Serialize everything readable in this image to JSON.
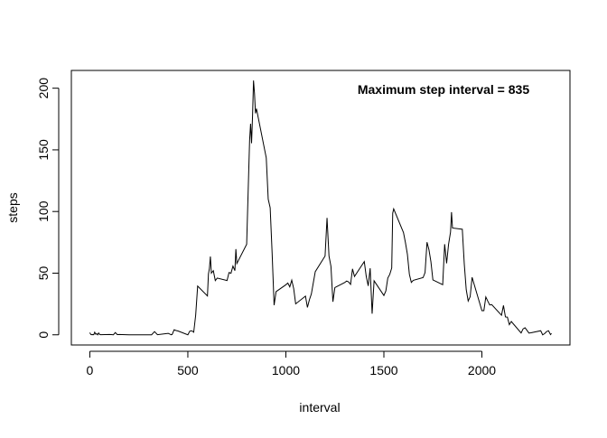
{
  "chart_data": {
    "type": "line",
    "x_label": "interval",
    "y_label": "steps",
    "annotation": "Maximum step interval =  835",
    "annotation_color": "#0000ff",
    "xlim": [
      -94.2,
      2449.2
    ],
    "ylim": [
      -8.25,
      214.4
    ],
    "xticks": [
      0,
      500,
      1000,
      1500,
      2000
    ],
    "yticks": [
      0,
      50,
      100,
      150,
      200
    ],
    "color": "#000000",
    "x": [
      0,
      5,
      10,
      15,
      20,
      25,
      30,
      35,
      40,
      45,
      50,
      55,
      100,
      110,
      120,
      130,
      140,
      150,
      200,
      215,
      230,
      245,
      300,
      315,
      330,
      345,
      400,
      415,
      420,
      430,
      440,
      450,
      500,
      510,
      520,
      530,
      540,
      550,
      600,
      605,
      610,
      615,
      620,
      630,
      640,
      650,
      700,
      710,
      720,
      730,
      740,
      745,
      750,
      800,
      810,
      815,
      820,
      825,
      830,
      835,
      840,
      845,
      850,
      900,
      910,
      920,
      930,
      935,
      940,
      950,
      1000,
      1010,
      1020,
      1030,
      1040,
      1050,
      1100,
      1110,
      1120,
      1130,
      1140,
      1150,
      1200,
      1210,
      1220,
      1230,
      1240,
      1250,
      1300,
      1310,
      1320,
      1330,
      1340,
      1350,
      1400,
      1410,
      1420,
      1430,
      1440,
      1450,
      1500,
      1510,
      1520,
      1530,
      1540,
      1545,
      1550,
      1600,
      1610,
      1620,
      1630,
      1640,
      1650,
      1700,
      1710,
      1720,
      1730,
      1740,
      1750,
      1800,
      1810,
      1820,
      1830,
      1840,
      1845,
      1850,
      1900,
      1910,
      1920,
      1930,
      1940,
      1950,
      2000,
      2010,
      2020,
      2030,
      2040,
      2050,
      2100,
      2110,
      2120,
      2130,
      2140,
      2150,
      2200,
      2210,
      2220,
      2230,
      2240,
      2250,
      2300,
      2310,
      2320,
      2330,
      2340,
      2350,
      2355
    ],
    "values": [
      1.7,
      0.3,
      0.1,
      0.2,
      0.1,
      2.1,
      0.5,
      0.9,
      0,
      1.5,
      0.3,
      0.1,
      0.3,
      0.2,
      0,
      1.8,
      0.2,
      0.3,
      0,
      0,
      0,
      0,
      0,
      0,
      2.6,
      0.1,
      1.2,
      0,
      0.3,
      4.1,
      3.5,
      3.1,
      0,
      3,
      3.3,
      2.1,
      16,
      39.5,
      31.5,
      49.3,
      53.8,
      63.5,
      50,
      52,
      44,
      46,
      44,
      50.5,
      49.9,
      55.7,
      52,
      69.5,
      57.8,
      73.4,
      129.4,
      157.5,
      171.2,
      155.4,
      177.3,
      206.2,
      195.9,
      179.6,
      183.4,
      143.5,
      110,
      103,
      66,
      45,
      24,
      35,
      40.6,
      42,
      38.9,
      44.3,
      37.4,
      25.1,
      31.4,
      22.2,
      28.4,
      33.1,
      42.2,
      51.2,
      63.9,
      94.8,
      63.9,
      55.5,
      26.8,
      38.3,
      42.4,
      43.6,
      42.9,
      40.9,
      53.5,
      47.3,
      59.4,
      47.4,
      39.7,
      54,
      17.1,
      43.8,
      31.9,
      35.5,
      46,
      49,
      54.2,
      98.6,
      102.1,
      82.9,
      74.7,
      65.2,
      49.1,
      42.5,
      44.2,
      46.4,
      50.5,
      75.1,
      68.9,
      59.2,
      44.5,
      40.7,
      73.5,
      58,
      73.5,
      83.3,
      99.5,
      86.6,
      85.6,
      57.6,
      36.7,
      27.4,
      30.9,
      46.6,
      19.6,
      19.6,
      30.7,
      27.3,
      24.2,
      24.5,
      15.9,
      23.8,
      14.5,
      14.4,
      8.2,
      10.8,
      1.5,
      4.8,
      5.7,
      3.6,
      1.4,
      1.6,
      3.3,
      0,
      1,
      2.6,
      3.3,
      0.2,
      1.1
    ]
  }
}
